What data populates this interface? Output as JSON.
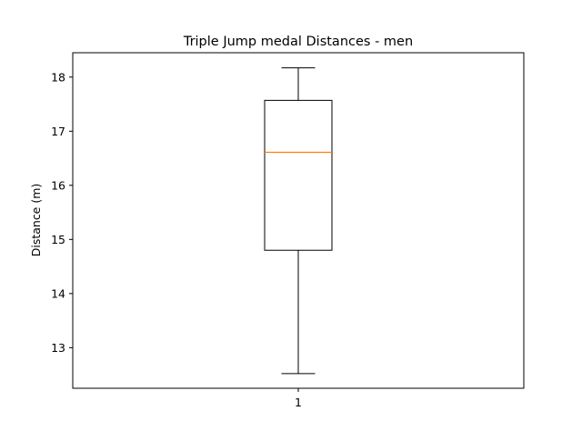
{
  "chart_data": {
    "type": "box",
    "title": "Triple Jump medal Distances - men",
    "xlabel": "",
    "ylabel": "Distance (m)",
    "categories": [
      "1"
    ],
    "ylim": [
      12.25,
      18.45
    ],
    "yticks": [
      13,
      14,
      15,
      16,
      17,
      18
    ],
    "boxes": [
      {
        "category": "1",
        "whisker_low": 12.52,
        "q1": 14.8,
        "median": 16.61,
        "q3": 17.57,
        "whisker_high": 18.17
      }
    ],
    "grid": false,
    "colors": {
      "box": "#000000",
      "median": "#ff7f0e",
      "whisker": "#000000",
      "frame": "#000000"
    }
  }
}
